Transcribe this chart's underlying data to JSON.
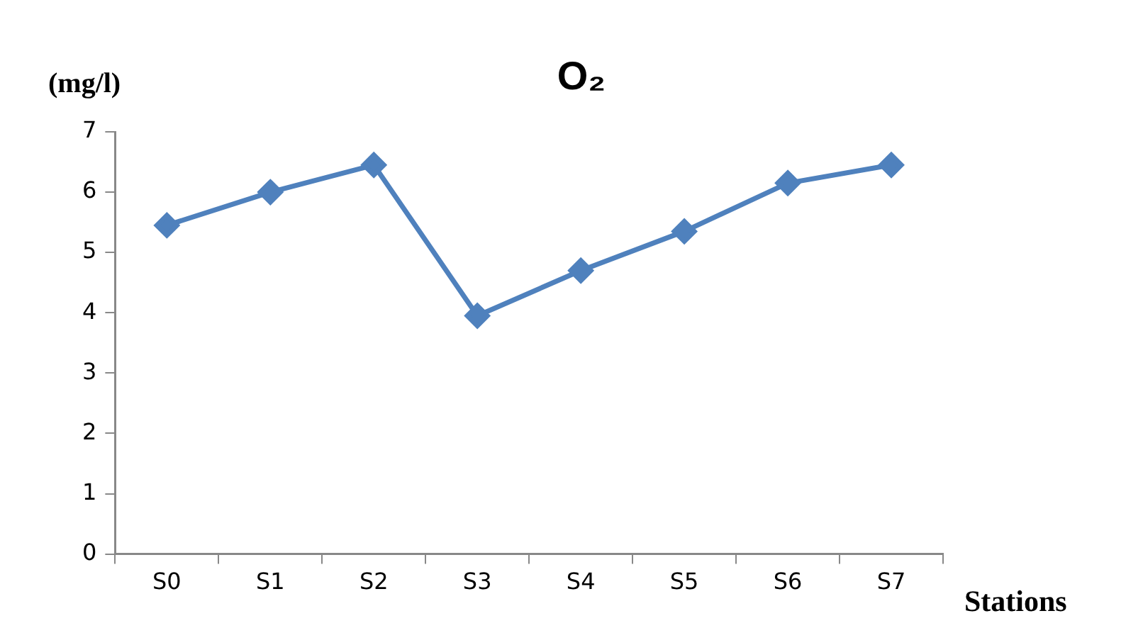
{
  "chart_data": {
    "type": "line",
    "title": "O₂",
    "ylabel": "(mg/l)",
    "xlabel": "Stations",
    "categories": [
      "S0",
      "S1",
      "S2",
      "S3",
      "S4",
      "S5",
      "S6",
      "S7"
    ],
    "series": [
      {
        "color": "#4f81bd",
        "values": [
          5.45,
          6.0,
          6.45,
          3.95,
          4.7,
          5.35,
          6.15,
          6.45
        ]
      }
    ],
    "ylim": [
      0,
      7
    ],
    "yticks": [
      0,
      1,
      2,
      3,
      4,
      5,
      6,
      7
    ],
    "grid": false,
    "legend": false,
    "marker": "diamond",
    "line_style": "solid"
  }
}
